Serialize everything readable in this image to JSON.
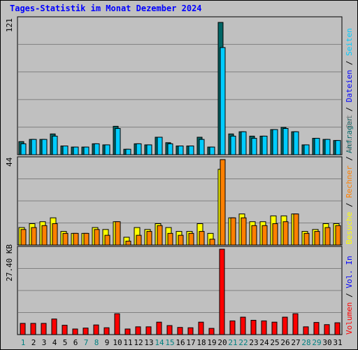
{
  "title": "Tages-Statistik im Monat Dezember 2024",
  "colors": {
    "frame_bg": "#c0c0c0",
    "grid": "#808080",
    "anfragen": "#006666",
    "dateien": "#00ccff",
    "seiten": "#00ccff",
    "besuche": "#ffff00",
    "rechner": "#ff8000",
    "volumen": "#ff0000",
    "weekday_label": "#006600",
    "weekend_label": "#008080",
    "sep": "#000000"
  },
  "legends": {
    "hits": [
      {
        "text": "Anfragen",
        "color": "#006666"
      },
      {
        "text": " / ",
        "color": "#000000"
      },
      {
        "text": "Dateien",
        "color": "#0000ff"
      },
      {
        "text": " / ",
        "color": "#000000"
      },
      {
        "text": "Seiten",
        "color": "#00ccff"
      }
    ],
    "visits": [
      {
        "text": "Besuche",
        "color": "#ffff00"
      },
      {
        "text": " / ",
        "color": "#000000"
      },
      {
        "text": "Rechner",
        "color": "#ff8000"
      },
      {
        "text": " / ",
        "color": "#000000"
      },
      {
        "text": "Vol. Out",
        "color": "#808080"
      }
    ],
    "volume": [
      {
        "text": "Volumen",
        "color": "#ff0000"
      },
      {
        "text": " / ",
        "color": "#000000"
      },
      {
        "text": "Vol. In",
        "color": "#0000ff"
      }
    ]
  },
  "chart_data": [
    {
      "type": "bar",
      "name": "hits",
      "max_label": "121",
      "ylim": [
        0,
        121
      ],
      "categories": [
        "1",
        "2",
        "3",
        "4",
        "5",
        "6",
        "7",
        "8",
        "9",
        "10",
        "11",
        "12",
        "13",
        "14",
        "15",
        "16",
        "17",
        "18",
        "19",
        "20",
        "21",
        "22",
        "23",
        "24",
        "25",
        "26",
        "27",
        "28",
        "29",
        "30",
        "31"
      ],
      "series": [
        {
          "name": "Anfragen",
          "values": [
            12,
            14,
            14,
            19,
            8,
            7,
            7,
            10,
            9,
            26,
            5,
            10,
            9,
            16,
            11,
            8,
            8,
            16,
            7,
            121,
            19,
            21,
            17,
            17,
            23,
            25,
            21,
            9,
            15,
            14,
            13
          ]
        },
        {
          "name": "Dateien",
          "values": [
            10,
            14,
            14,
            17,
            8,
            7,
            7,
            10,
            9,
            24,
            5,
            10,
            9,
            16,
            10,
            8,
            8,
            14,
            7,
            98,
            17,
            21,
            15,
            17,
            23,
            24,
            21,
            9,
            15,
            14,
            13
          ]
        },
        {
          "name": "Seiten",
          "values": [
            10,
            14,
            14,
            17,
            8,
            7,
            7,
            10,
            9,
            24,
            5,
            10,
            9,
            16,
            10,
            8,
            8,
            14,
            7,
            12,
            17,
            21,
            15,
            17,
            23,
            24,
            21,
            9,
            15,
            14,
            13
          ]
        }
      ]
    },
    {
      "type": "bar",
      "name": "visits",
      "max_label": "44",
      "ylim": [
        0,
        44
      ],
      "categories": [
        "1",
        "2",
        "3",
        "4",
        "5",
        "6",
        "7",
        "8",
        "9",
        "10",
        "11",
        "12",
        "13",
        "14",
        "15",
        "16",
        "17",
        "18",
        "19",
        "20",
        "21",
        "22",
        "23",
        "24",
        "25",
        "26",
        "27",
        "28",
        "29",
        "30",
        "31"
      ],
      "series": [
        {
          "name": "Besuche",
          "values": [
            9,
            11,
            12,
            14,
            7,
            6,
            6,
            9,
            8,
            12,
            4,
            9,
            8,
            11,
            9,
            7,
            7,
            11,
            6,
            39,
            14,
            16,
            12,
            12,
            15,
            15,
            16,
            7,
            8,
            11,
            11
          ]
        },
        {
          "name": "Rechner",
          "values": [
            8,
            9,
            10,
            11,
            6,
            6,
            6,
            8,
            5,
            12,
            2,
            5,
            7,
            10,
            6,
            5,
            6,
            7,
            3,
            44,
            14,
            14,
            10,
            10,
            11,
            12,
            16,
            6,
            7,
            9,
            10
          ]
        }
      ]
    },
    {
      "type": "bar",
      "name": "volume",
      "max_label": "27.40 KB",
      "ylim": [
        0,
        27.4
      ],
      "unit": "KB",
      "categories": [
        "1",
        "2",
        "3",
        "4",
        "5",
        "6",
        "7",
        "8",
        "9",
        "10",
        "11",
        "12",
        "13",
        "14",
        "15",
        "16",
        "17",
        "18",
        "19",
        "20",
        "21",
        "22",
        "23",
        "24",
        "25",
        "26",
        "27",
        "28",
        "29",
        "30",
        "31"
      ],
      "series": [
        {
          "name": "Volumen",
          "values": [
            3.6,
            3.6,
            3.6,
            5.0,
            3.0,
            1.8,
            2.1,
            3.1,
            2.2,
            6.7,
            1.8,
            2.5,
            2.5,
            4.0,
            2.9,
            2.3,
            2.2,
            4.0,
            2.0,
            27.4,
            4.4,
            5.6,
            4.6,
            4.4,
            4.0,
            5.6,
            6.7,
            2.5,
            3.9,
            3.2,
            3.8
          ]
        }
      ]
    }
  ],
  "x_labels": {
    "days": [
      "1",
      "2",
      "3",
      "4",
      "5",
      "6",
      "7",
      "8",
      "9",
      "10",
      "11",
      "12",
      "13",
      "14",
      "15",
      "16",
      "17",
      "18",
      "19",
      "20",
      "21",
      "22",
      "23",
      "24",
      "25",
      "26",
      "27",
      "28",
      "29",
      "30",
      "31"
    ],
    "weekend_days": [
      1,
      7,
      8,
      14,
      15,
      21,
      22,
      28,
      29
    ]
  }
}
